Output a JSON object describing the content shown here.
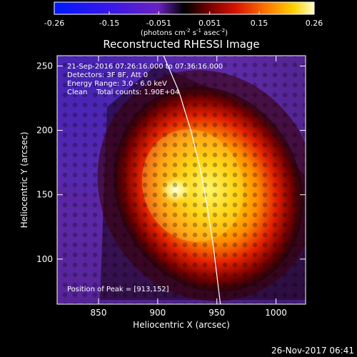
{
  "chart_data": {
    "type": "heatmap",
    "title": "Reconstructed RHESSI Image",
    "xlabel": "Heliocentric X (arcsec)",
    "ylabel": "Heliocentric Y (arcsec)",
    "xlim": [
      815,
      1025
    ],
    "ylim": [
      65,
      258
    ],
    "x_ticks": [
      850,
      900,
      950,
      1000
    ],
    "y_ticks": [
      100,
      150,
      200,
      250
    ],
    "colorbar": {
      "range": [
        -0.26,
        0.26
      ],
      "ticks": [
        "-0.26",
        "-0.15",
        "-0.051",
        "0.051",
        "0.15",
        "0.26"
      ],
      "unit_label_parts": [
        "(photons cm",
        "-2",
        " s",
        "-1",
        " asec",
        "-2",
        ")"
      ]
    },
    "annotations": [
      "21-Sep-2016 07:26:16.000 to 07:36:16.000",
      "Detectors: 3F 8F, Att 0",
      "Energy Range: 3.0 - 6.0 keV",
      "Clean    Total counts: 1.90E+04"
    ],
    "peak_label": "Position of Peak = [913,152]",
    "peak": [
      913,
      152
    ],
    "limb_points": [
      [
        905,
        258
      ],
      [
        918,
        230
      ],
      [
        928,
        200
      ],
      [
        936,
        170
      ],
      [
        942,
        140
      ],
      [
        947,
        110
      ],
      [
        951,
        80
      ],
      [
        953,
        65
      ]
    ],
    "footer": "26-Nov-2017 06:41"
  }
}
